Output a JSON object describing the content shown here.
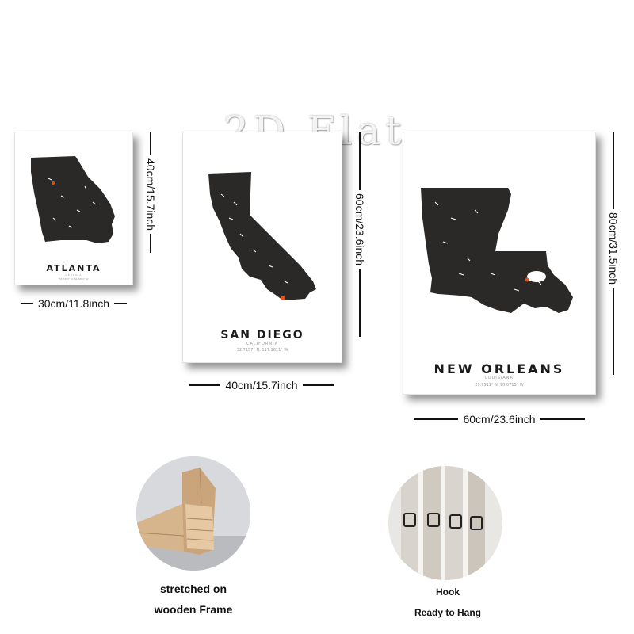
{
  "watermark": "2D Flat",
  "posters": [
    {
      "city": "ATLANTA",
      "state": "GEORGIA",
      "coords": "33.7490° N, 84.3880° W",
      "width_label": "30cm/11.8inch",
      "height_label": "40cm/15.7inch"
    },
    {
      "city": "SAN DIEGO",
      "state": "CALIFORNIA",
      "coords": "32.7157° N, 117.1611° W",
      "width_label": "40cm/15.7inch",
      "height_label": "60cm/23.6inch"
    },
    {
      "city": "NEW ORLEANS",
      "state": "LOUISIANA",
      "coords": "29.9511° N, 90.0715° W",
      "width_label": "60cm/23.6inch",
      "height_label": "80cm/31.5inch"
    }
  ],
  "features": {
    "frame_caption_line1": "stretched on",
    "frame_caption_line2": "wooden Frame",
    "hook_caption_line1": "Hook",
    "hook_caption_line2": "Ready to Hang"
  },
  "colors": {
    "map_fill": "#2b2927",
    "location_marker": "#e0561a",
    "text_dark": "#1b1b1b"
  },
  "icons": [
    "wooden-frame-photo",
    "hook-photo"
  ]
}
